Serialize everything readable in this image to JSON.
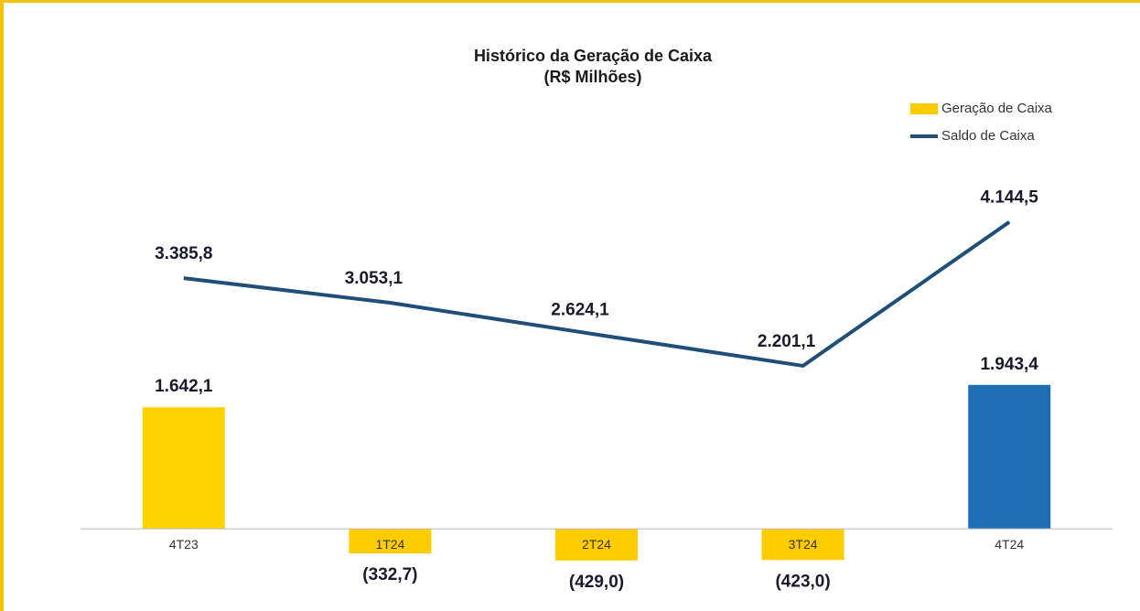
{
  "chart_data": {
    "type": "bar_line",
    "title": "Histórico da Geração de Caixa",
    "subtitle": "(R$ Milhões)",
    "categories": [
      "4T23",
      "1T24",
      "2T24",
      "3T24",
      "4T24"
    ],
    "ylim": [
      -1000,
      5500
    ],
    "legend": "top-right",
    "series": [
      {
        "name": "Geração de Caixa",
        "kind": "bar",
        "color": "#ffcc00",
        "colors": [
          "#ffd200",
          "#ffcc00",
          "#ffcc00",
          "#ffcc00",
          "#1f6db5"
        ],
        "values": [
          1642.1,
          -332.7,
          -429.0,
          -423.0,
          1943.4
        ],
        "value_labels": [
          "1.642,1",
          "(332,7)",
          "(429,0)",
          "(423,0)",
          "1.943,4"
        ]
      },
      {
        "name": "Saldo de Caixa",
        "kind": "line",
        "color": "#1f4e79",
        "values": [
          3385.8,
          3053.1,
          2624.1,
          2201.1,
          4144.5
        ],
        "value_labels": [
          "3.385,8",
          "3.053,1",
          "2.624,1",
          "2.201,1",
          "4.144,5"
        ]
      }
    ]
  }
}
